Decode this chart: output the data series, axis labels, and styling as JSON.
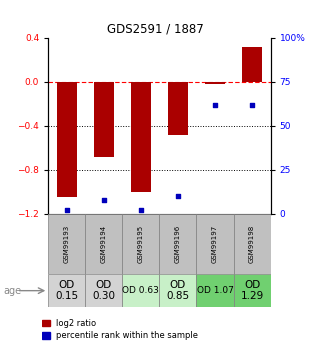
{
  "title": "GDS2591 / 1887",
  "samples": [
    "GSM99193",
    "GSM99194",
    "GSM99195",
    "GSM99196",
    "GSM99197",
    "GSM99198"
  ],
  "log2_ratio": [
    -1.05,
    -0.68,
    -1.0,
    -0.48,
    -0.02,
    0.32
  ],
  "percentile_rank": [
    2,
    8,
    2,
    10,
    62,
    62
  ],
  "ylim_left": [
    -1.2,
    0.4
  ],
  "ylim_right": [
    0,
    100
  ],
  "yticks_left": [
    0.4,
    0.0,
    -0.4,
    -0.8,
    -1.2
  ],
  "yticks_right": [
    100,
    75,
    50,
    25,
    0
  ],
  "bar_color": "#aa0000",
  "dot_color": "#0000bb",
  "dotted_lines": [
    -0.4,
    -0.8
  ],
  "age_labels": [
    "OD\n0.15",
    "OD\n0.30",
    "OD 0.63",
    "OD\n0.85",
    "OD 1.07",
    "OD\n1.29"
  ],
  "age_fontsize": [
    7.5,
    7.5,
    6.5,
    7.5,
    6.5,
    7.5
  ],
  "age_bg_colors": [
    "#d3d3d3",
    "#d3d3d3",
    "#c8f0c8",
    "#c8f0c8",
    "#70d070",
    "#70d070"
  ],
  "sample_bg_color": "#c0c0c0",
  "legend_log2_color": "#aa0000",
  "legend_pct_color": "#0000bb"
}
